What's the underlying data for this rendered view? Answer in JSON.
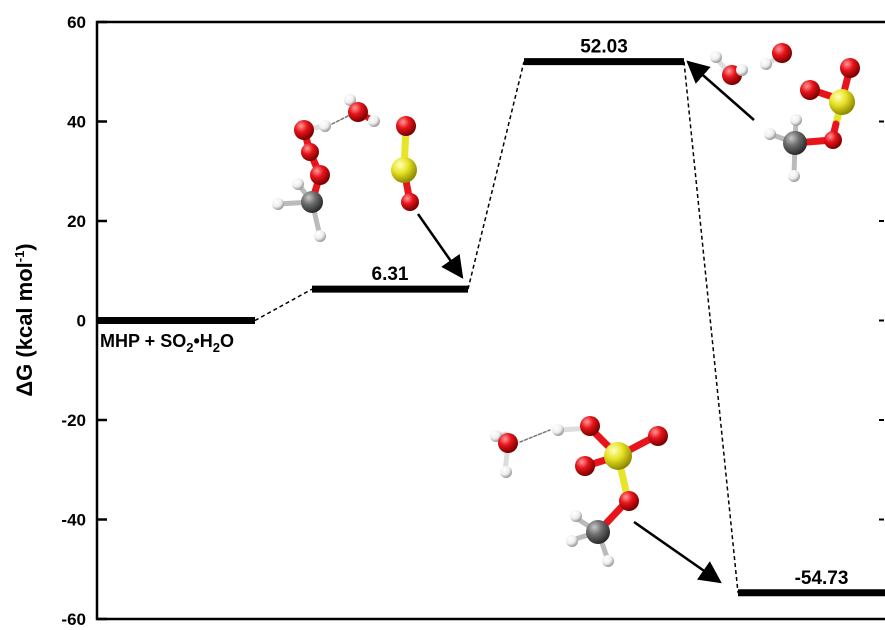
{
  "chart_data": {
    "type": "line",
    "ylabel_main": "ΔG (kcal mol",
    "ylabel_exp": "-1",
    "ylabel_close": ")",
    "ylim": [
      -60,
      60
    ],
    "yticks": [
      60,
      40,
      20,
      0,
      -20,
      -40,
      -60
    ],
    "ytick_labels": [
      "60",
      "40",
      "20",
      "0",
      "-20",
      "-40",
      "-60"
    ],
    "grid": false,
    "levels": [
      {
        "id": "reactant",
        "value": 0,
        "label": "MHP + SO2•H2O"
      },
      {
        "id": "intermediate",
        "value": 6.31,
        "label": "6.31"
      },
      {
        "id": "transition-state",
        "value": 52.03,
        "label": "52.03"
      },
      {
        "id": "product",
        "value": -54.73,
        "label": "-54.73"
      }
    ],
    "reactant_label_parts": {
      "a": "MHP + SO",
      "sub1": "2",
      "b": "•H",
      "sub2": "2",
      "c": "O"
    }
  },
  "colors": {
    "axis": "#000000",
    "oxygen": "#e8141b",
    "sulfur": "#e8e427",
    "carbon": "#6e6e6e",
    "hydrogen": "#f2f2f2"
  },
  "icons": [
    "molecule-intermediate-icon",
    "molecule-ts-icon",
    "molecule-product-icon"
  ]
}
